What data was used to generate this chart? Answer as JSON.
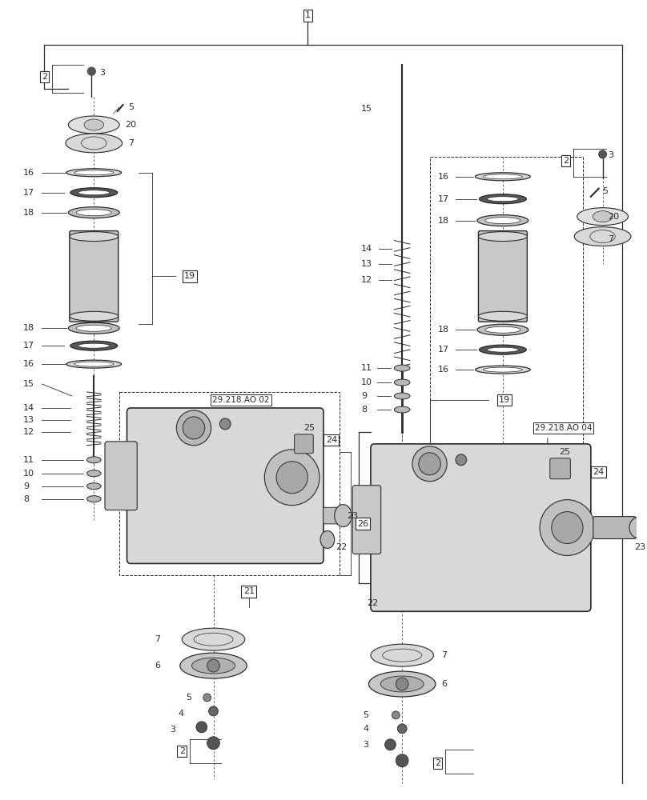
{
  "bg_color": "#ffffff",
  "lc": "#2a2a2a",
  "figsize": [
    8.08,
    10.0
  ],
  "dpi": 100
}
